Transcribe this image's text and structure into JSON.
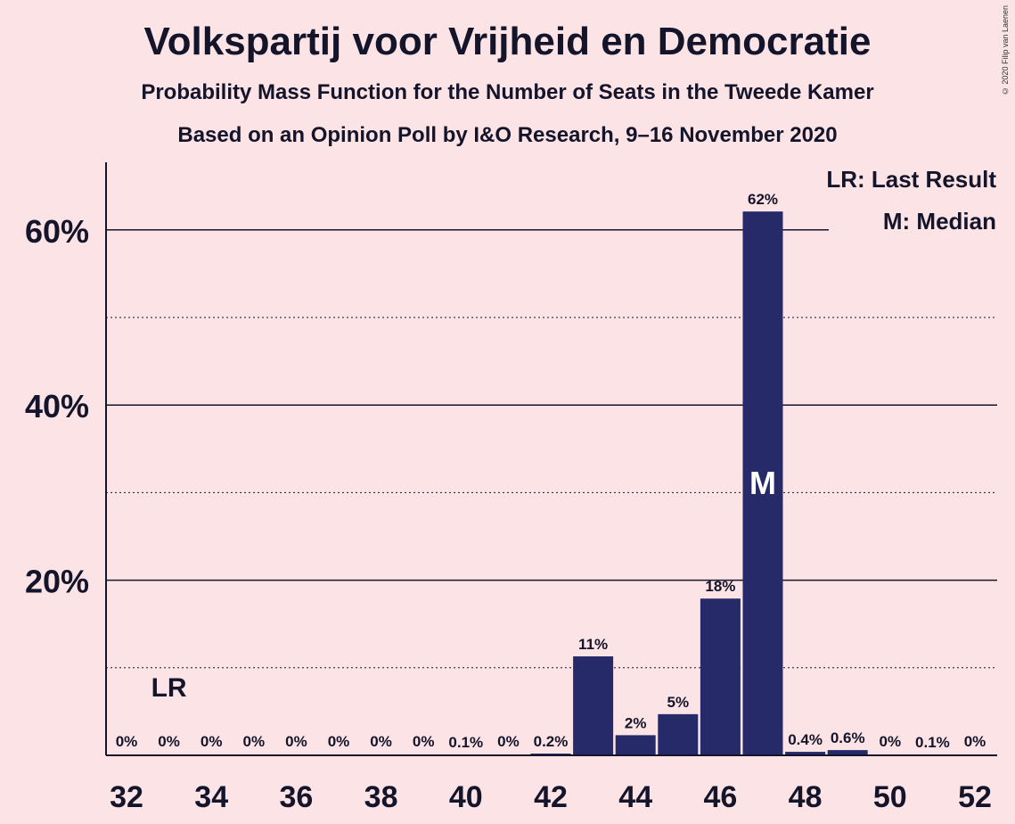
{
  "chart_data": {
    "type": "bar",
    "title": "Volkspartij voor Vrijheid en Democratie",
    "subtitle": "Probability Mass Function for the Number of Seats in the Tweede Kamer",
    "subtitle2": "Based on an Opinion Poll by I&O Research, 9–16 November 2020",
    "copyright": "© 2020 Filip van Laenen",
    "x": [
      32,
      33,
      34,
      35,
      36,
      37,
      38,
      39,
      40,
      41,
      42,
      43,
      44,
      45,
      46,
      47,
      48,
      49,
      50,
      51,
      52
    ],
    "values": [
      0,
      0,
      0,
      0,
      0,
      0,
      0,
      0,
      0.1,
      0,
      0.2,
      11.3,
      2.3,
      4.7,
      17.9,
      62.1,
      0.4,
      0.6,
      0,
      0.1,
      0
    ],
    "value_labels": [
      "0%",
      "0%",
      "0%",
      "0%",
      "0%",
      "0%",
      "0%",
      "0%",
      "0.1%",
      "0%",
      "0.2%",
      "11%",
      "2%",
      "5%",
      "18%",
      "62%",
      "0.4%",
      "0.6%",
      "0%",
      "0.1%",
      "0%"
    ],
    "x_ticks": [
      32,
      34,
      36,
      38,
      40,
      42,
      44,
      46,
      48,
      50,
      52
    ],
    "y_ticks": [
      20,
      40,
      60
    ],
    "y_tick_labels": [
      "20%",
      "40%",
      "60%"
    ],
    "ylim": [
      0,
      68
    ],
    "last_result_seat": 33,
    "last_result_marker": "LR",
    "median_seat": 47,
    "median_marker": "M",
    "legend": [
      "LR: Last Result",
      "M: Median"
    ],
    "legend_position": "top-right",
    "bar_color": "#262A68",
    "background_color": "#FCE4E6",
    "grid": "solid at 20% steps, dotted at 10% steps"
  }
}
